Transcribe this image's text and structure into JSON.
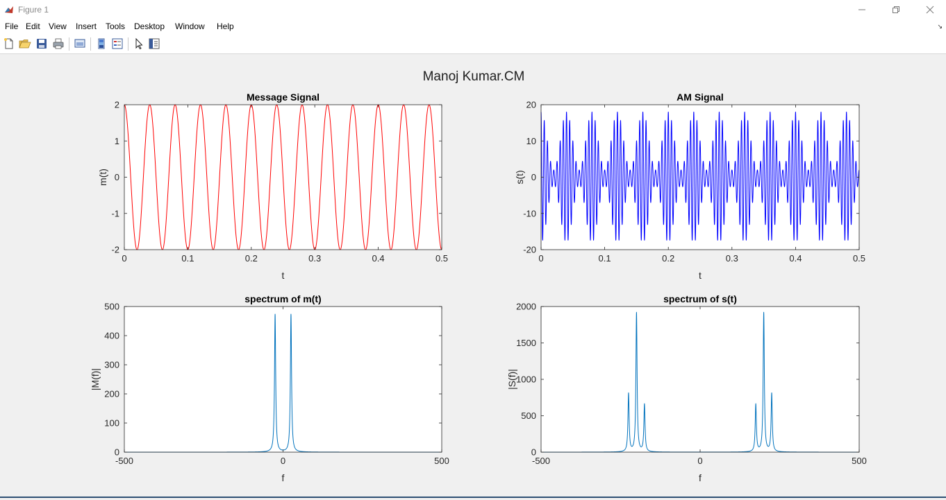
{
  "window": {
    "title": "Figure 1",
    "controls": {
      "minimize": "minimize-icon",
      "restore": "restore-icon",
      "close": "close-icon"
    }
  },
  "menu": {
    "items": [
      "File",
      "Edit",
      "View",
      "Insert",
      "Tools",
      "Desktop",
      "Window",
      "Help"
    ]
  },
  "toolbar": {
    "buttons": [
      "new-figure-icon",
      "open-file-icon",
      "save-icon",
      "print-icon",
      "link-plot-icon",
      "colorbar-icon",
      "legend-icon",
      "edit-plot-arrow-icon",
      "property-inspector-icon"
    ]
  },
  "figure": {
    "suptitle": "Manoj Kumar.CM"
  },
  "chart_data": [
    {
      "type": "line",
      "title": "Message Signal",
      "xlabel": "t",
      "ylabel": "m(t)",
      "xlim": [
        0,
        0.5
      ],
      "ylim": [
        -2,
        2
      ],
      "xticks": [
        0,
        0.1,
        0.2,
        0.3,
        0.4,
        0.5
      ],
      "xticklabels": [
        "0",
        "0.1",
        "0.2",
        "0.3",
        "0.4",
        "0.5"
      ],
      "yticks": [
        -2,
        -1,
        0,
        1,
        2
      ],
      "yticklabels": [
        "-2",
        "-1",
        "0",
        "1",
        "2"
      ],
      "series": [
        {
          "function": "2*cos(2*pi*25*t)",
          "amplitude": 2,
          "frequency_hz": 25,
          "color": "#ff0000"
        }
      ]
    },
    {
      "type": "line",
      "title": "AM Signal",
      "xlabel": "t",
      "ylabel": "s(t)",
      "xlim": [
        0,
        0.5
      ],
      "ylim": [
        -20,
        20
      ],
      "xticks": [
        0,
        0.1,
        0.2,
        0.3,
        0.4,
        0.5
      ],
      "xticklabels": [
        "0",
        "0.1",
        "0.2",
        "0.3",
        "0.4",
        "0.5"
      ],
      "yticks": [
        -20,
        -10,
        0,
        10,
        20
      ],
      "yticklabels": [
        "-20",
        "-10",
        "0",
        "10",
        "20"
      ],
      "series": [
        {
          "function": "10*(1+0.4*m(t))*cos(2*pi*200*t)",
          "carrier_amplitude": 10,
          "carrier_frequency_hz": 200,
          "message_frequency_hz": 25,
          "color": "#0000ff"
        }
      ]
    },
    {
      "type": "line",
      "title": "spectrum of m(t)",
      "xlabel": "f",
      "ylabel": "|M(f)|",
      "xlim": [
        -500,
        500
      ],
      "ylim": [
        0,
        500
      ],
      "xticks": [
        -500,
        0,
        500
      ],
      "xticklabels": [
        "-500",
        "0",
        "500"
      ],
      "yticks": [
        0,
        100,
        200,
        300,
        400,
        500
      ],
      "yticklabels": [
        "0",
        "100",
        "200",
        "300",
        "400",
        "500"
      ],
      "series": [
        {
          "peaks": [
            {
              "f": -25,
              "value": 473
            },
            {
              "f": 25,
              "value": 473
            }
          ],
          "peak_width_hz": 2.2,
          "color": "#0072bd"
        }
      ]
    },
    {
      "type": "line",
      "title": "spectrum of s(t)",
      "xlabel": "f",
      "ylabel": "|S(f)|",
      "xlim": [
        -500,
        500
      ],
      "ylim": [
        0,
        2000
      ],
      "xticks": [
        -500,
        0,
        500
      ],
      "xticklabels": [
        "-500",
        "0",
        "500"
      ],
      "yticks": [
        0,
        500,
        1000,
        1500,
        2000
      ],
      "yticklabels": [
        "0",
        "500",
        "1000",
        "1500",
        "2000"
      ],
      "series": [
        {
          "peaks": [
            {
              "f": -225,
              "value": 800
            },
            {
              "f": -200,
              "value": 1910
            },
            {
              "f": -175,
              "value": 650
            },
            {
              "f": 175,
              "value": 650
            },
            {
              "f": 200,
              "value": 1910
            },
            {
              "f": 225,
              "value": 800
            }
          ],
          "peak_width_hz": 2.2,
          "color": "#0072bd"
        }
      ]
    }
  ]
}
